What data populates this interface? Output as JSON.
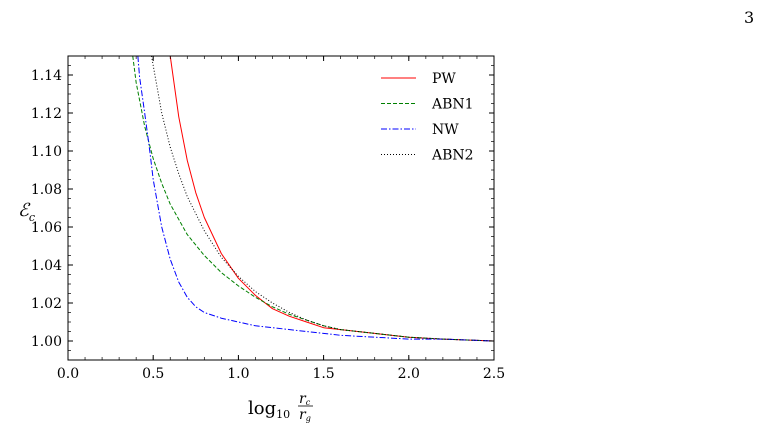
{
  "page": {
    "number": "3"
  },
  "chart_data": {
    "type": "line",
    "title": "",
    "xlabel": {
      "main": "log",
      "sub": "10",
      "frac_num": "r",
      "frac_num_sub": "c",
      "frac_den": "r",
      "frac_den_sub": "g"
    },
    "ylabel": {
      "main": "ℰ",
      "sub": "c"
    },
    "xlim": [
      0.0,
      2.5
    ],
    "ylim": [
      0.99,
      1.15
    ],
    "xticks": [
      0.0,
      0.5,
      1.0,
      1.5,
      2.0,
      2.5
    ],
    "xtick_labels": [
      "0.0",
      "0.5",
      "1.0",
      "1.5",
      "2.0",
      "2.5"
    ],
    "yticks": [
      1.0,
      1.02,
      1.04,
      1.06,
      1.08,
      1.1,
      1.12,
      1.14
    ],
    "ytick_labels": [
      "1.00",
      "1.02",
      "1.04",
      "1.06",
      "1.08",
      "1.10",
      "1.12",
      "1.14"
    ],
    "grid": false,
    "legend_position": "top-right",
    "series": [
      {
        "name": "PW",
        "color": "#ff0000",
        "dash": "solid",
        "x": [
          0.6,
          0.65,
          0.7,
          0.75,
          0.8,
          0.9,
          1.0,
          1.1,
          1.2,
          1.3,
          1.4,
          1.5,
          1.6,
          1.8,
          2.0,
          2.2,
          2.5
        ],
        "y": [
          1.15,
          1.118,
          1.095,
          1.078,
          1.065,
          1.046,
          1.033,
          1.024,
          1.017,
          1.013,
          1.01,
          1.007,
          1.006,
          1.004,
          1.002,
          1.001,
          1.0
        ]
      },
      {
        "name": "ABN1",
        "color": "#008000",
        "dash": "dashed",
        "x": [
          0.38,
          0.4,
          0.45,
          0.5,
          0.55,
          0.6,
          0.7,
          0.8,
          0.9,
          1.0,
          1.1,
          1.2,
          1.3,
          1.4,
          1.5,
          1.6,
          1.8,
          2.0,
          2.2,
          2.5
        ],
        "y": [
          1.15,
          1.136,
          1.113,
          1.096,
          1.083,
          1.072,
          1.056,
          1.045,
          1.036,
          1.029,
          1.023,
          1.018,
          1.014,
          1.011,
          1.008,
          1.006,
          1.004,
          1.002,
          1.001,
          1.0
        ]
      },
      {
        "name": "NW",
        "color": "#0000ff",
        "dash": "dashdot",
        "x": [
          0.41,
          0.42,
          0.45,
          0.48,
          0.5,
          0.55,
          0.6,
          0.65,
          0.7,
          0.75,
          0.8,
          0.9,
          1.0,
          1.1,
          1.2,
          1.4,
          1.6,
          1.8,
          2.0,
          2.2,
          2.5
        ],
        "y": [
          1.15,
          1.139,
          1.12,
          1.1,
          1.085,
          1.06,
          1.043,
          1.031,
          1.023,
          1.018,
          1.015,
          1.012,
          1.01,
          1.008,
          1.007,
          1.005,
          1.003,
          1.002,
          1.001,
          1.001,
          1.0
        ]
      },
      {
        "name": "ABN2",
        "color": "#000000",
        "dash": "dotted",
        "x": [
          0.49,
          0.5,
          0.55,
          0.6,
          0.65,
          0.7,
          0.8,
          0.9,
          1.0,
          1.1,
          1.2,
          1.3,
          1.4,
          1.5,
          1.6,
          1.8,
          2.0,
          2.2,
          2.5
        ],
        "y": [
          1.15,
          1.145,
          1.12,
          1.102,
          1.088,
          1.076,
          1.058,
          1.044,
          1.034,
          1.026,
          1.02,
          1.015,
          1.011,
          1.008,
          1.006,
          1.004,
          1.002,
          1.001,
          1.0
        ]
      }
    ]
  }
}
